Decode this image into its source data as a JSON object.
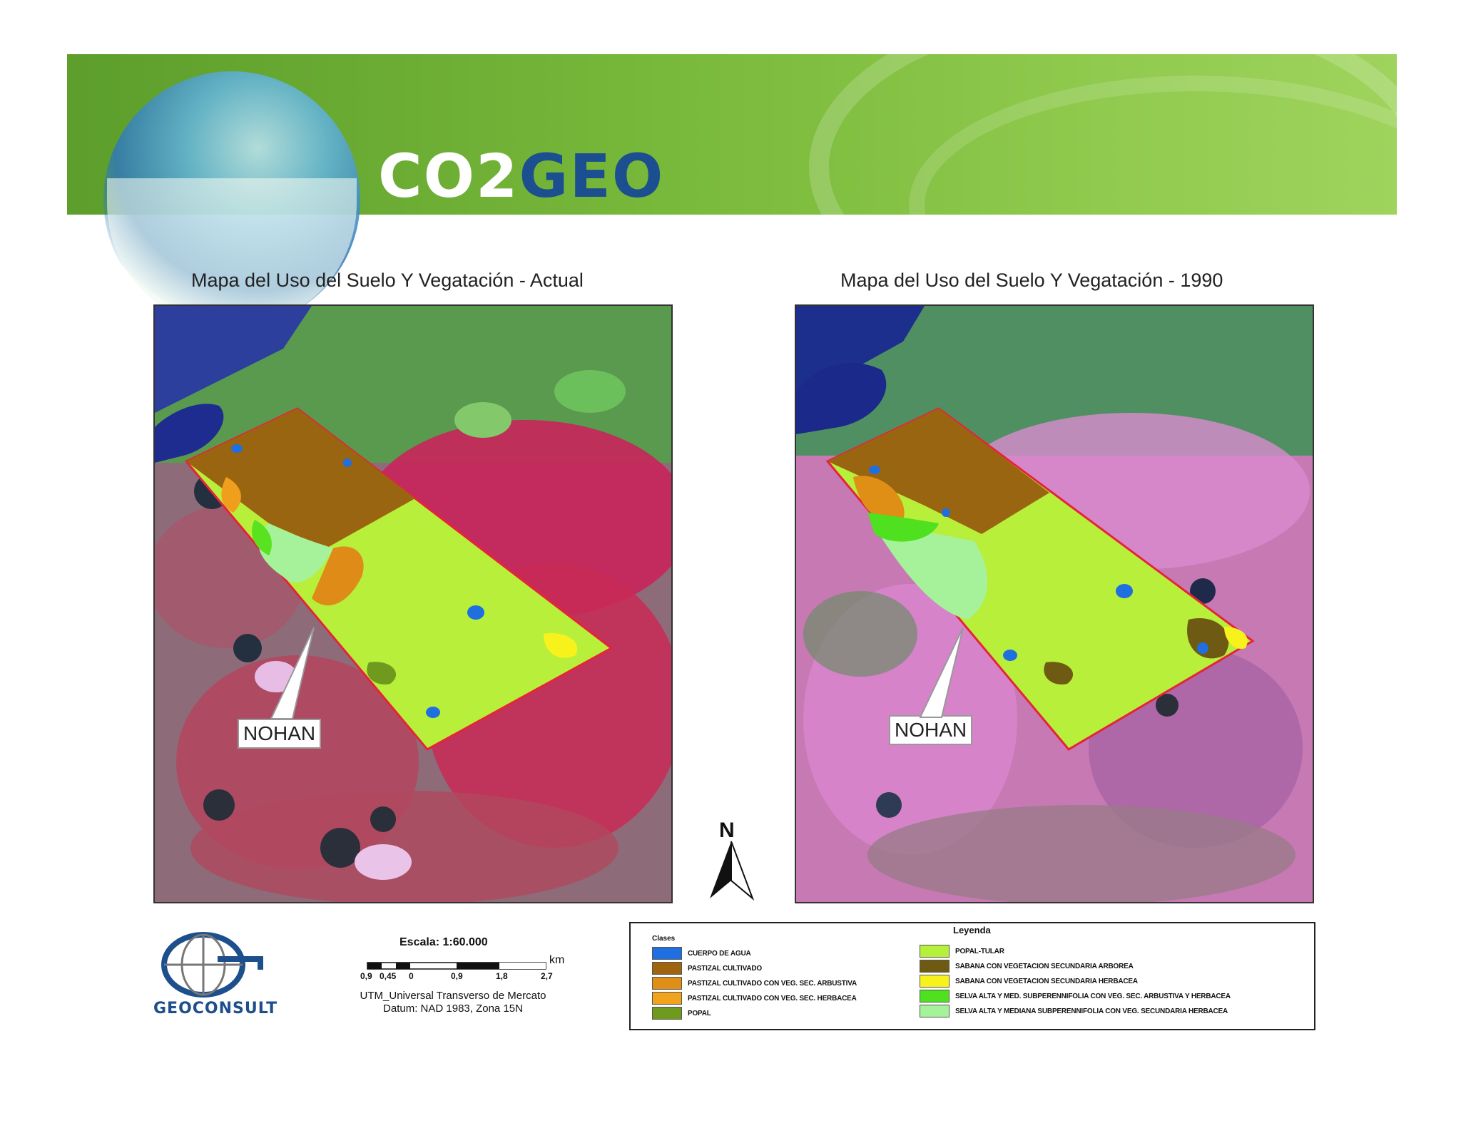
{
  "header": {
    "logo_part1": "CO2",
    "logo_part2": "GEO"
  },
  "maps": {
    "left_title": "Mapa del Uso del Suelo Y Vegatación -  Actual",
    "right_title": "Mapa del Uso del Suelo Y Vegatación -  1990",
    "left_callout": "NOHAN",
    "right_callout": "NOHAN"
  },
  "north_arrow": {
    "letter": "N"
  },
  "footer": {
    "company": "GEOCONSULT",
    "scale_label": "Escala: 1:60.000",
    "scale_unit": "km",
    "scale_ticks": [
      "0,9",
      "0,45",
      "0",
      "0,9",
      "1,8",
      "2,7"
    ],
    "projection_line1": "UTM_Universal Transverso de Mercato",
    "projection_line2": "Datum: NAD 1983, Zona 15N"
  },
  "legend": {
    "title": "Leyenda",
    "subtitle": "Clases",
    "items": [
      {
        "label": "CUERPO DE AGUA",
        "color": "#1f6fe0"
      },
      {
        "label": "PASTIZAL CULTIVADO",
        "color": "#a0640f"
      },
      {
        "label": "PASTIZAL CULTIVADO CON VEG. SEC. ARBUSTIVA",
        "color": "#df8f16"
      },
      {
        "label": "PASTIZAL CULTIVADO CON VEG. SEC. HERBACEA",
        "color": "#f2a31e"
      },
      {
        "label": "POPAL",
        "color": "#6f9a1d"
      },
      {
        "label": "POPAL-TULAR",
        "color": "#b6f03a"
      },
      {
        "label": "SABANA CON VEGETACION SECUNDARIA ARBOREA",
        "color": "#6e5a12"
      },
      {
        "label": "SABANA CON VEGETACION SECUNDARIA HERBACEA",
        "color": "#f7f21c"
      },
      {
        "label": "SELVA ALTA Y MED. SUBPERENNIFOLIA CON VEG. SEC. ARBUSTIVA Y HERBACEA",
        "color": "#4fe01f"
      },
      {
        "label": "SELVA ALTA Y MEDIANA SUBPERENNIFOLIA CON VEG. SECUNDARIA HERBACEA",
        "color": "#a6f29a"
      }
    ]
  }
}
